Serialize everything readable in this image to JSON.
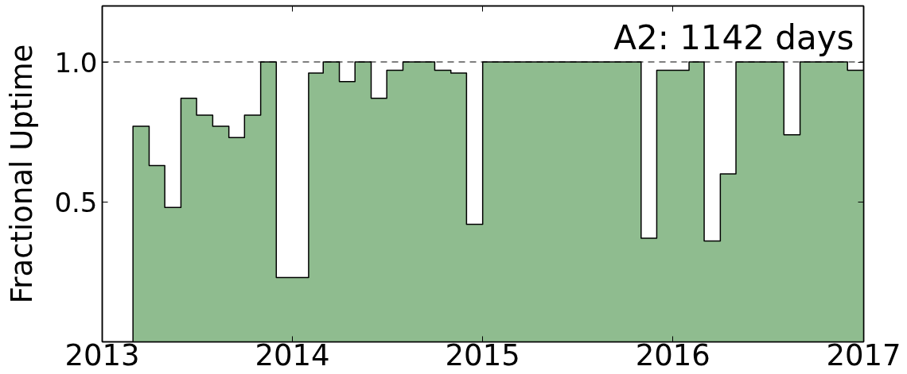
{
  "chart_data": {
    "type": "area",
    "ylabel": "Fractional Uptime",
    "annotations": [
      "A2: 1142 days"
    ],
    "x": [
      "2013-03",
      "2013-03",
      "2013-04",
      "2013-04",
      "2013-05",
      "2013-05",
      "2013-06",
      "2013-06",
      "2013-07",
      "2013-07",
      "2013-08",
      "2013-08",
      "2013-09",
      "2013-09",
      "2013-10",
      "2013-10",
      "2013-11",
      "2013-11",
      "2013-12",
      "2013-12",
      "2014-02",
      "2014-02",
      "2014-03",
      "2014-03",
      "2014-04",
      "2014-04",
      "2014-05",
      "2014-05",
      "2014-06",
      "2014-06",
      "2014-07",
      "2014-07",
      "2014-08",
      "2014-08",
      "2014-10",
      "2014-10",
      "2014-11",
      "2014-11",
      "2014-12",
      "2014-12",
      "2015-01",
      "2015-01",
      "2015-11",
      "2015-11",
      "2015-12",
      "2015-12",
      "2016-02",
      "2016-02",
      "2016-03",
      "2016-03",
      "2016-04",
      "2016-04",
      "2016-05",
      "2016-05",
      "2016-08",
      "2016-08",
      "2016-09",
      "2016-09",
      "2016-12",
      "2016-12",
      "2017-01"
    ],
    "values": [
      0,
      0.77,
      0.77,
      0.63,
      0.63,
      0.48,
      0.48,
      0.87,
      0.87,
      0.81,
      0.81,
      0.77,
      0.77,
      0.73,
      0.73,
      0.81,
      0.81,
      1.0,
      1.0,
      0.23,
      0.23,
      0.96,
      0.96,
      1.0,
      1.0,
      0.93,
      0.93,
      1.0,
      1.0,
      0.87,
      0.87,
      0.97,
      0.97,
      1.0,
      1.0,
      0.97,
      0.97,
      0.96,
      0.96,
      0.42,
      0.42,
      1.0,
      1.0,
      0.37,
      0.37,
      0.97,
      0.97,
      1.0,
      1.0,
      0.36,
      0.36,
      0.6,
      0.6,
      1.0,
      1.0,
      0.74,
      0.74,
      1.0,
      1.0,
      0.97,
      0.97
    ],
    "color": "#8fbc8f",
    "xlim": [
      "2013",
      "2017"
    ],
    "xticks": [
      "2013",
      "2014",
      "2015",
      "2016",
      "2017"
    ],
    "ylim": [
      0,
      1.2
    ],
    "yticks": [
      0.5,
      {
        "value": 1,
        "label": "1.0"
      }
    ],
    "ref_lines": [
      {
        "axis": "y",
        "value": 1,
        "color": "#000000",
        "line_style": "dashed"
      }
    ]
  }
}
